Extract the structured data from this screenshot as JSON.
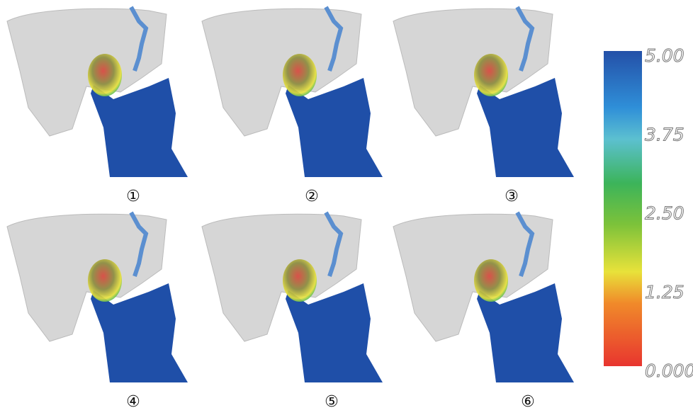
{
  "panels": [
    {
      "label": "①"
    },
    {
      "label": "②"
    },
    {
      "label": "③"
    },
    {
      "label": "④"
    },
    {
      "label": "⑤"
    },
    {
      "label": "⑥"
    }
  ],
  "colorbar": {
    "lim": [
      0,
      5
    ],
    "ticks": [
      {
        "value": 0,
        "label": "0.000"
      },
      {
        "value": 1.25,
        "label": "1.25"
      },
      {
        "value": 2.5,
        "label": "2.50"
      },
      {
        "value": 3.75,
        "label": "3.75"
      },
      {
        "value": 5,
        "label": "5.00"
      }
    ]
  }
}
